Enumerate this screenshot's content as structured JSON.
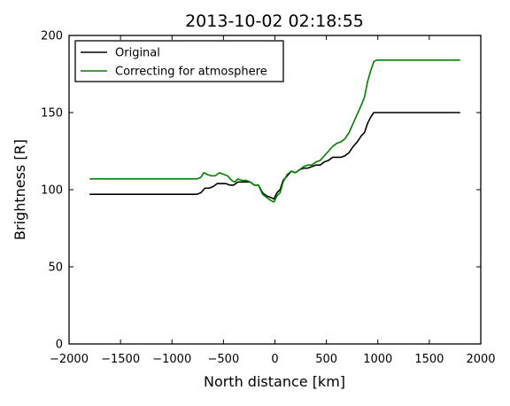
{
  "chart_data": {
    "type": "line",
    "title": "2013-10-02 02:18:55",
    "xlabel": "North distance [km]",
    "ylabel": "Brightness [R]",
    "xlim": [
      -2000,
      2000
    ],
    "ylim": [
      0,
      200
    ],
    "xticks": [
      -2000,
      -1500,
      -1000,
      -500,
      0,
      500,
      1000,
      1500,
      2000
    ],
    "xtick_labels": [
      "−2000",
      "−1500",
      "−1000",
      "−500",
      "0",
      "500",
      "1000",
      "1500",
      "2000"
    ],
    "yticks": [
      0,
      50,
      100,
      150,
      200
    ],
    "ytick_labels": [
      "0",
      "50",
      "100",
      "150",
      "200"
    ],
    "grid": false,
    "legend_position": "top-left",
    "series": [
      {
        "name": "Original",
        "color": "#000000",
        "x": [
          -1800,
          -1000,
          -760,
          -720,
          -680,
          -640,
          -600,
          -560,
          -520,
          -480,
          -440,
          -400,
          -360,
          -320,
          -280,
          -240,
          -200,
          -160,
          -120,
          -80,
          -40,
          -10,
          20,
          50,
          80,
          120,
          160,
          200,
          240,
          280,
          320,
          360,
          400,
          440,
          480,
          520,
          560,
          600,
          640,
          680,
          720,
          760,
          800,
          840,
          870,
          900,
          930,
          960,
          990,
          1020,
          1800
        ],
        "y": [
          97,
          97,
          97,
          98,
          101,
          101,
          102,
          104,
          104,
          104,
          103,
          103,
          105,
          105,
          105,
          105,
          103,
          103,
          98,
          96,
          95,
          94,
          98,
          100,
          106,
          109,
          112,
          111,
          113,
          114,
          114,
          115,
          116,
          116,
          118,
          119,
          121,
          121,
          121,
          122,
          124,
          128,
          131,
          135,
          137,
          143,
          147,
          150,
          150,
          150,
          150
        ]
      },
      {
        "name": "Correcting for atmosphere",
        "color": "#008000",
        "x": [
          -1800,
          -1000,
          -760,
          -720,
          -690,
          -660,
          -620,
          -580,
          -540,
          -500,
          -460,
          -420,
          -390,
          -360,
          -320,
          -280,
          -240,
          -200,
          -160,
          -120,
          -80,
          -40,
          -10,
          20,
          50,
          80,
          120,
          160,
          200,
          240,
          280,
          320,
          360,
          400,
          440,
          480,
          520,
          560,
          600,
          640,
          680,
          720,
          760,
          800,
          840,
          870,
          900,
          930,
          960,
          990,
          1020,
          1800
        ],
        "y": [
          107,
          107,
          107,
          108,
          111,
          110,
          109,
          109,
          111,
          110,
          109,
          106,
          105,
          107,
          106,
          106,
          105,
          103,
          103,
          97,
          95,
          93,
          92,
          96,
          98,
          105,
          110,
          112,
          111,
          113,
          115,
          116,
          116,
          118,
          119,
          122,
          125,
          128,
          130,
          131,
          133,
          137,
          143,
          149,
          155,
          160,
          170,
          177,
          183,
          184,
          184,
          184
        ]
      }
    ]
  }
}
